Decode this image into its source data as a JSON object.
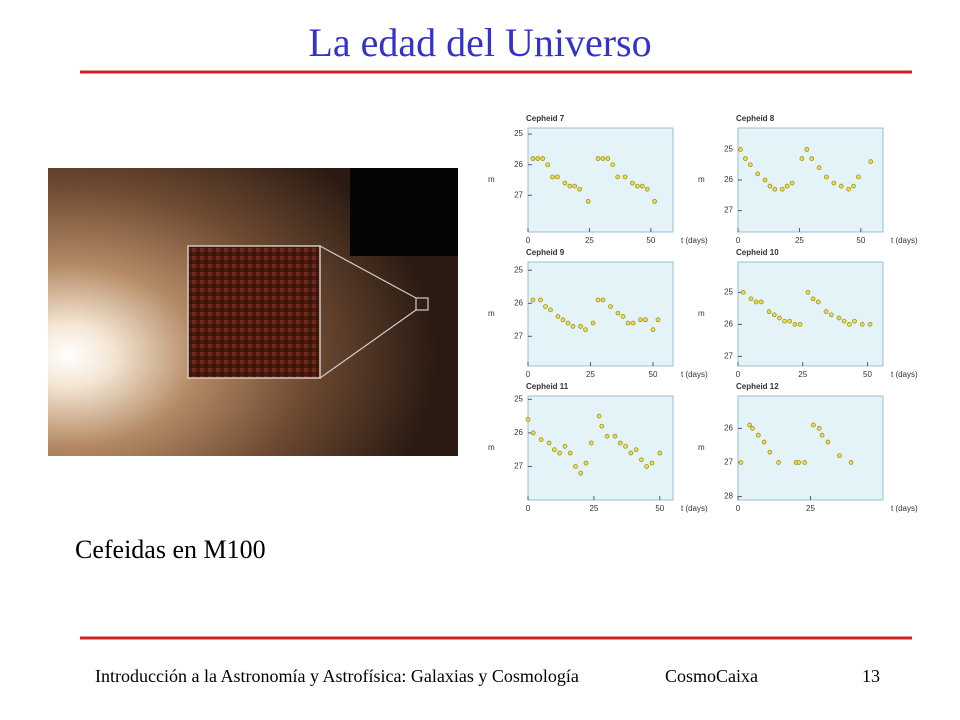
{
  "title": "La edad del Universo",
  "caption": "Cefeidas en M100",
  "footer": {
    "course": "Introducción a la Astronomía y Astrofísica: Galaxias y Cosmología",
    "venue": "CosmoCaixa",
    "page": "13"
  },
  "chart_data": [
    {
      "type": "scatter",
      "title": "Cepheid 7",
      "xlabel": "t (days)",
      "ylabel": "m",
      "color": "#e8dc50",
      "x": [
        2,
        4,
        6,
        8,
        10,
        12,
        15,
        17,
        19,
        21,
        24.5,
        28.5,
        30.5,
        32.5,
        34.5,
        36.5,
        39.5,
        42.5,
        44.5,
        46.5,
        48.5,
        51.5
      ],
      "values": [
        25.8,
        25.8,
        25.8,
        26.0,
        26.4,
        26.4,
        26.6,
        26.7,
        26.7,
        26.8,
        27.2,
        25.8,
        25.8,
        25.8,
        26.0,
        26.4,
        26.4,
        26.6,
        26.7,
        26.7,
        26.8,
        27.2
      ],
      "xlim": [
        0,
        59
      ],
      "ylim": [
        28.2,
        24.8
      ],
      "xticks": [
        0,
        25,
        50
      ],
      "yticks": [
        25,
        26,
        27
      ]
    },
    {
      "type": "scatter",
      "title": "Cepheid 8",
      "xlabel": "t (days)",
      "ylabel": "m",
      "color": "#e8dc50",
      "x": [
        1,
        3,
        5,
        8,
        11,
        13,
        15,
        18,
        20,
        22,
        26,
        28,
        30,
        33,
        36,
        39,
        42,
        45,
        47,
        49,
        54
      ],
      "values": [
        25.0,
        25.3,
        25.5,
        25.8,
        26.0,
        26.2,
        26.3,
        26.3,
        26.2,
        26.1,
        25.3,
        25.0,
        25.3,
        25.6,
        25.9,
        26.1,
        26.2,
        26.3,
        26.2,
        25.9,
        25.4
      ],
      "xlim": [
        0,
        59
      ],
      "ylim": [
        27.7,
        24.3
      ],
      "xticks": [
        0,
        25,
        50
      ],
      "yticks": [
        25,
        26,
        27
      ]
    },
    {
      "type": "scatter",
      "title": "Cepheid 9",
      "xlabel": "t (days)",
      "ylabel": "m",
      "color": "#e8dc50",
      "x": [
        2,
        5,
        7,
        9,
        12,
        14,
        16,
        18,
        21,
        23,
        26,
        28,
        30,
        33,
        36,
        38,
        40,
        42,
        45,
        47,
        50,
        52
      ],
      "values": [
        25.9,
        25.9,
        26.1,
        26.2,
        26.4,
        26.5,
        26.6,
        26.7,
        26.7,
        26.8,
        26.6,
        25.9,
        25.9,
        26.1,
        26.3,
        26.4,
        26.6,
        26.6,
        26.5,
        26.5,
        26.8,
        26.5
      ],
      "xlim": [
        0,
        58
      ],
      "ylim": [
        27.9,
        24.75
      ],
      "xticks": [
        0,
        25,
        50
      ],
      "yticks": [
        25,
        26,
        27
      ]
    },
    {
      "type": "scatter",
      "title": "Cepheid 10",
      "xlabel": "t (days)",
      "ylabel": "m",
      "color": "#e8dc50",
      "x": [
        2,
        5,
        7,
        9,
        12,
        14,
        16,
        18,
        20,
        22,
        24,
        27,
        29,
        31,
        34,
        36,
        39,
        41,
        43,
        45,
        48,
        51
      ],
      "values": [
        25.0,
        25.2,
        25.3,
        25.3,
        25.6,
        25.7,
        25.8,
        25.9,
        25.9,
        26.0,
        26.0,
        25.0,
        25.2,
        25.3,
        25.6,
        25.7,
        25.8,
        25.9,
        26.0,
        25.9,
        26.0,
        26.0
      ],
      "xlim": [
        0,
        56
      ],
      "ylim": [
        27.3,
        24.05
      ],
      "xticks": [
        0,
        25,
        50
      ],
      "yticks": [
        25,
        26,
        27
      ]
    },
    {
      "type": "scatter",
      "title": "Cepheid 11",
      "xlabel": "t (days)",
      "ylabel": "m",
      "color": "#e8dc50",
      "x": [
        0,
        2,
        5,
        8,
        10,
        12,
        14,
        16,
        18,
        20,
        22,
        24,
        27,
        28,
        30,
        33,
        35,
        37,
        39,
        41,
        43,
        45,
        47,
        50
      ],
      "values": [
        25.6,
        26.0,
        26.2,
        26.3,
        26.5,
        26.6,
        26.4,
        26.6,
        27.0,
        27.2,
        26.9,
        26.3,
        25.5,
        25.8,
        26.1,
        26.1,
        26.3,
        26.4,
        26.6,
        26.5,
        26.8,
        27.0,
        26.9,
        26.6
      ],
      "xlim": [
        0,
        55
      ],
      "ylim": [
        28.0,
        24.9
      ],
      "xticks": [
        0,
        25,
        50
      ],
      "yticks": [
        25,
        26,
        27
      ]
    },
    {
      "type": "scatter",
      "title": "Cepheid 12",
      "xlabel": "t (days)",
      "ylabel": "m",
      "color": "#e8dc50",
      "x": [
        1,
        4,
        5,
        7,
        9,
        11,
        14,
        20,
        21,
        23,
        26,
        28,
        29,
        31,
        35,
        39
      ],
      "values": [
        27.0,
        25.9,
        26.0,
        26.2,
        26.4,
        26.7,
        27.0,
        27.0,
        27.0,
        27.0,
        25.9,
        26.0,
        26.2,
        26.4,
        26.8,
        27.0
      ],
      "xlim": [
        0,
        50
      ],
      "ylim": [
        28.1,
        25.05
      ],
      "xticks": [
        0,
        25
      ],
      "yticks": [
        26,
        27,
        28
      ]
    }
  ]
}
